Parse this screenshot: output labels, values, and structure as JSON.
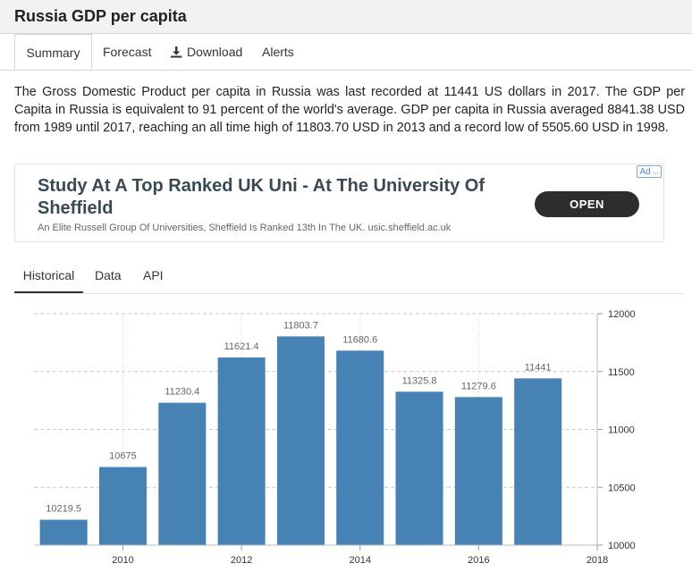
{
  "page": {
    "title": "Russia GDP per capita"
  },
  "tabs": [
    {
      "label": "Summary",
      "active": true
    },
    {
      "label": "Forecast"
    },
    {
      "label": "Download",
      "icon": "download-icon"
    },
    {
      "label": "Alerts"
    }
  ],
  "description": "The Gross Domestic Product per capita in Russia was last recorded at 11441 US dollars in 2017. The GDP per Capita in Russia is equivalent to 91 percent of the world's average. GDP per capita in Russia averaged 8841.38 USD from 1989 until 2017, reaching an all time high of 11803.70 USD in 2013 and a record low of 5505.60 USD in 1998.",
  "ad": {
    "badge": "Ad",
    "headline": "Study At A Top Ranked UK Uni - At The University Of Sheffield",
    "subtext": "An Elite Russell Group Of Universities, Sheffield Is Ranked 13th In The UK. usic.sheffield.ac.uk",
    "cta": "OPEN"
  },
  "subtabs": [
    {
      "label": "Historical",
      "active": true
    },
    {
      "label": "Data"
    },
    {
      "label": "API"
    }
  ],
  "chart_data": {
    "type": "bar",
    "title": "",
    "xlabel": "",
    "ylabel": "",
    "x": [
      2009,
      2010,
      2011,
      2012,
      2013,
      2014,
      2015,
      2016,
      2017
    ],
    "values": [
      10219.5,
      10675,
      11230.4,
      11621.4,
      11803.7,
      11680.6,
      11325.8,
      11279.6,
      11441
    ],
    "value_labels": [
      "10219.5",
      "10675",
      "11230.4",
      "11621.4",
      "11803.7",
      "11680.6",
      "11325.8",
      "11279.6",
      "11441"
    ],
    "ylim": [
      10000,
      12000
    ],
    "yticks": [
      10000,
      10500,
      11000,
      11500,
      12000
    ],
    "xlim": [
      2008.5,
      2018
    ],
    "xticks": [
      2010,
      2012,
      2014,
      2016,
      2018
    ],
    "y_axis_side": "right",
    "grid": "horizontal dashed, vertical dotted",
    "bar_color": "#4682b4"
  }
}
